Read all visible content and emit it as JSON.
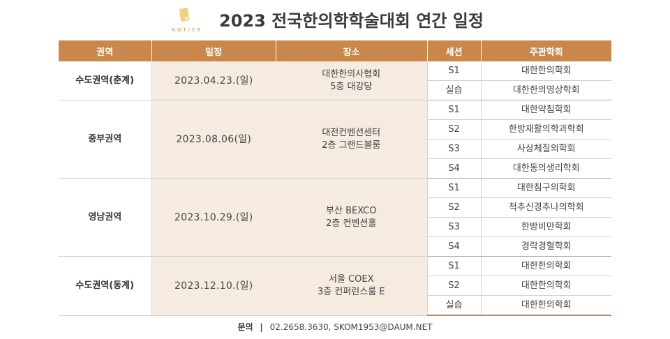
{
  "notice": {
    "label": "NOTICE"
  },
  "title": "2023 전국한의학학술대회 연간 일정",
  "table": {
    "headers": [
      "권역",
      "일정",
      "장소",
      "세션",
      "주관학회"
    ],
    "groups": [
      {
        "region": "수도권역(춘계)",
        "date": "2023.04.23.(일)",
        "place": [
          "대한한의사협회",
          "5층 대강당"
        ],
        "sessions": [
          {
            "session": "S1",
            "host": "대한한의학회"
          },
          {
            "session": "실습",
            "host": "대한한의영상학회"
          }
        ]
      },
      {
        "region": "중부권역",
        "date": "2023.08.06(일)",
        "place": [
          "대전컨벤션센터",
          "2층 그랜드볼룸"
        ],
        "sessions": [
          {
            "session": "S1",
            "host": "대한약침학회"
          },
          {
            "session": "S2",
            "host": "한방재활의학과학회"
          },
          {
            "session": "S3",
            "host": "사상체질의학회"
          },
          {
            "session": "S4",
            "host": "대한동의생리학회"
          }
        ]
      },
      {
        "region": "영남권역",
        "date": "2023.10.29.(일)",
        "place": [
          "부산 BEXCO",
          "2층 컨벤션홀"
        ],
        "sessions": [
          {
            "session": "S1",
            "host": "대한침구의학회"
          },
          {
            "session": "S2",
            "host": "척추신경추나의학회"
          },
          {
            "session": "S3",
            "host": "한방비만학회"
          },
          {
            "session": "S4",
            "host": "경락경혈학회"
          }
        ]
      },
      {
        "region": "수도권역(동계)",
        "date": "2023.12.10.(일)",
        "place": [
          "서울 COEX",
          "3층 컨퍼런스룸 E"
        ],
        "sessions": [
          {
            "session": "S1",
            "host": "대한한의학회"
          },
          {
            "session": "S2",
            "host": "대한한의학회"
          },
          {
            "session": "실습",
            "host": "대한한의학회"
          }
        ]
      }
    ]
  },
  "footer": {
    "label": "문의",
    "separator": "|",
    "contact": "02.2658.3630,  SKOM1953@DAUM.NET"
  },
  "colors": {
    "header_bg": "#c9874c",
    "shaded_bg": "#f5ebe0",
    "note": "#f3cf78"
  }
}
